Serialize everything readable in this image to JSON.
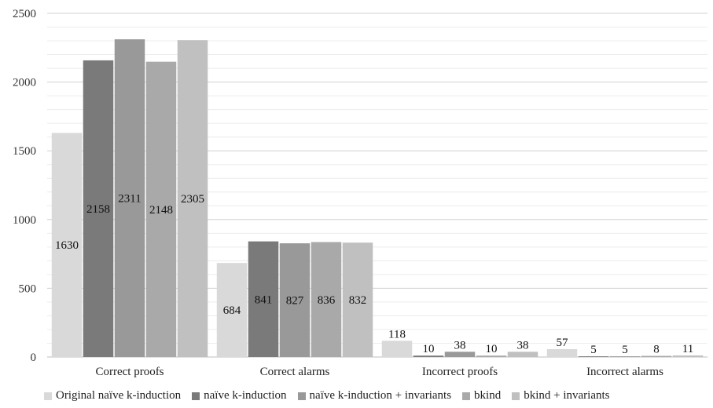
{
  "chart_data": {
    "type": "bar",
    "categories": [
      "Correct proofs",
      "Correct alarms",
      "Incorrect proofs",
      "Incorrect alarms"
    ],
    "series": [
      {
        "name": "Original naïve k-induction",
        "values": [
          1630,
          684,
          118,
          57
        ],
        "color": "#d9d9d9"
      },
      {
        "name": "naïve k-induction",
        "values": [
          2158,
          841,
          10,
          5
        ],
        "color": "#7a7a7a"
      },
      {
        "name": "naïve k-induction + invariants",
        "values": [
          2311,
          827,
          38,
          5
        ],
        "color": "#999999"
      },
      {
        "name": "bkind",
        "values": [
          2148,
          836,
          10,
          8
        ],
        "color": "#a9a9a9"
      },
      {
        "name": "bkind + invariants",
        "values": [
          2305,
          832,
          38,
          11
        ],
        "color": "#c0c0c0"
      }
    ],
    "ylim": [
      0,
      2500
    ],
    "yticks": [
      0,
      500,
      1000,
      1500,
      2000,
      2500
    ],
    "grid": true,
    "legend_position": "bottom"
  }
}
